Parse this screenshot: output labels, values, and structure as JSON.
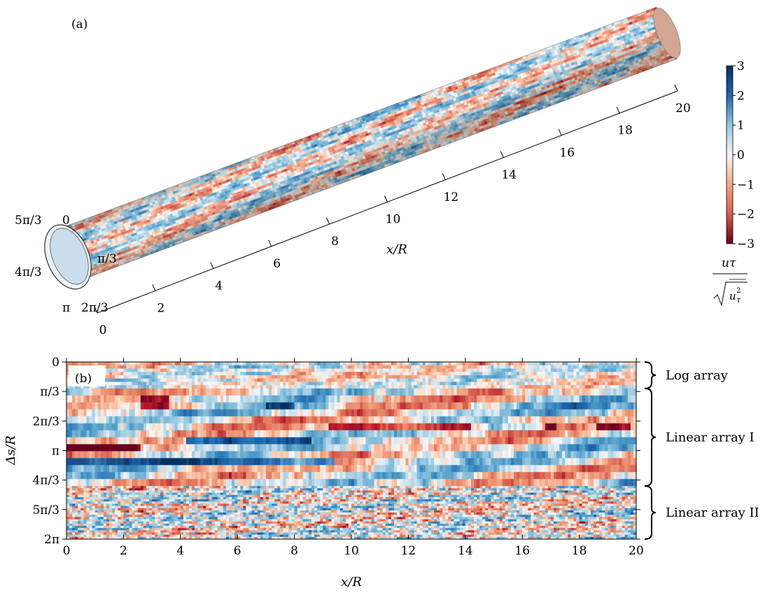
{
  "figure": {
    "panel_a_label": "(a)",
    "panel_b_label": "(b)"
  },
  "colors": {
    "neg": "#67001f",
    "mid": "#f7f7f7",
    "pos": "#053061"
  },
  "chart_data": [
    {
      "type": "heatmap",
      "panel": "(a)",
      "variant": "3d-cylinder-surface",
      "xlabel": "x/R",
      "x_ticks": [
        "0",
        "2",
        "4",
        "6",
        "8",
        "10",
        "12",
        "14",
        "16",
        "18",
        "20"
      ],
      "xlim": [
        0,
        20
      ],
      "theta_ticks": [
        "0",
        "π/3",
        "2π/3",
        "π",
        "4π/3",
        "5π/3"
      ],
      "colorbar": {
        "ticks": [
          "3",
          "2",
          "1",
          "0",
          "−1",
          "−2",
          "−3"
        ],
        "range": [
          -3,
          3
        ],
        "label_num": "uτ",
        "label_den": "√ uτ²",
        "colormap": "RdBu"
      }
    },
    {
      "type": "heatmap",
      "panel": "(b)",
      "xlabel": "x/R",
      "ylabel": "Δs/R",
      "x_ticks": [
        "0",
        "2",
        "4",
        "6",
        "8",
        "10",
        "12",
        "14",
        "16",
        "18",
        "20"
      ],
      "xlim": [
        0,
        20
      ],
      "y_ticks": [
        "0",
        "π/3",
        "2π/3",
        "π",
        "4π/3",
        "5π/3",
        "2π"
      ],
      "ylim": [
        0,
        6.2832
      ],
      "groups": [
        {
          "name": "Log array",
          "ds_range": [
            0,
            0.94
          ]
        },
        {
          "name": "Linear array I",
          "ds_range": [
            0.94,
            4.4
          ]
        },
        {
          "name": "Linear array II",
          "ds_range": [
            4.4,
            6.2832
          ]
        }
      ],
      "features": [
        {
          "ds": 1.4,
          "x_range": [
            2.6,
            3.6
          ],
          "sign": "negative"
        },
        {
          "ds": 2.3,
          "x_range": [
            9.2,
            14.2
          ],
          "sign": "negative"
        },
        {
          "ds": 2.3,
          "x_range": [
            16.8,
            17.2
          ],
          "sign": "negative"
        },
        {
          "ds": 2.3,
          "x_range": [
            18.6,
            19.8
          ],
          "sign": "negative"
        },
        {
          "ds": 3.1,
          "x_range": [
            0.0,
            2.6
          ],
          "sign": "negative"
        },
        {
          "ds": 2.85,
          "x_range": [
            4.2,
            8.6
          ],
          "sign": "positive"
        },
        {
          "ds": 3.55,
          "x_range": [
            0.0,
            9.4
          ],
          "sign": "positive"
        },
        {
          "ds": 1.6,
          "x_range": [
            7.0,
            8.0
          ],
          "sign": "positive"
        }
      ]
    }
  ]
}
